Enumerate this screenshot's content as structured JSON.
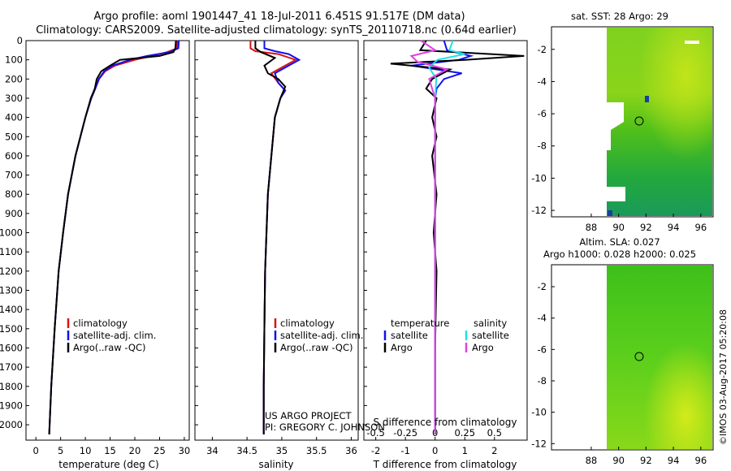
{
  "header": {
    "line1": "Argo profile: aoml 1901447_41 18-Jul-2011 6.451S 91.517E (DM data)",
    "line2": "Climatology: CARS2009. Satellite-adjusted climatology: synTS_20110718.nc (0.64d earlier)"
  },
  "colors": {
    "climatology": "#dd1111",
    "satellite": "#1010ee",
    "argo": "#000000",
    "sal_satellite": "#22e0e8",
    "sal_argo": "#e040e0"
  },
  "side_text": "©IMOS 03-Aug-2017 05:20:08",
  "credits": {
    "line1": "US ARGO PROJECT",
    "line2": "PI: GREGORY C. JOHNSON"
  },
  "chart_data": [
    {
      "type": "line",
      "id": "temperature",
      "xlabel": "temperature (deg C)",
      "ylabel": "",
      "xlim": [
        -2,
        31
      ],
      "ylim": [
        2080,
        0
      ],
      "xticks": [
        "0",
        "5",
        "10",
        "15",
        "20",
        "25",
        "30"
      ],
      "yticks": [
        "0",
        "100",
        "200",
        "300",
        "400",
        "500",
        "600",
        "700",
        "800",
        "900",
        "1000",
        "1100",
        "1200",
        "1300",
        "1400",
        "1500",
        "1600",
        "1700",
        "1800",
        "1900",
        "2000"
      ],
      "legend": [
        "climatology",
        "satellite-adj. clim.",
        "Argo(..raw -QC)"
      ],
      "series": [
        {
          "name": "climatology",
          "depth": [
            0,
            40,
            60,
            80,
            100,
            130,
            160,
            200,
            250,
            300,
            400,
            500,
            600,
            800,
            1000,
            1200,
            1500,
            1800,
            2050
          ],
          "values": [
            28.6,
            28.5,
            26.5,
            23.5,
            20,
            16,
            14,
            12.8,
            12.0,
            11.2,
            10.0,
            9.0,
            8.0,
            6.5,
            5.5,
            4.6,
            3.8,
            3.1,
            2.7
          ]
        },
        {
          "name": "satellite-adj. clim.",
          "depth": [
            0,
            40,
            60,
            80,
            100,
            130,
            160,
            200,
            250,
            300,
            400,
            500,
            600,
            800,
            1000,
            1200,
            1500,
            1800,
            2050
          ],
          "values": [
            28.9,
            28.8,
            27,
            22.5,
            19,
            15.5,
            13.8,
            12.7,
            12.0,
            11.2,
            10.0,
            9.0,
            8.0,
            6.5,
            5.5,
            4.6,
            3.8,
            3.1,
            2.7
          ]
        },
        {
          "name": "Argo(..raw -QC)",
          "depth": [
            0,
            40,
            60,
            80,
            100,
            130,
            160,
            200,
            250,
            300,
            400,
            500,
            600,
            800,
            1000,
            1200,
            1500,
            1800,
            2050
          ],
          "values": [
            28.3,
            28.2,
            27.8,
            25,
            17,
            15,
            13.2,
            12.3,
            11.9,
            11.1,
            10.0,
            9.0,
            8.0,
            6.5,
            5.5,
            4.6,
            3.8,
            3.1,
            2.7
          ]
        }
      ]
    },
    {
      "type": "line",
      "id": "salinity",
      "xlabel": "salinity",
      "xlim": [
        33.75,
        36.1
      ],
      "ylim": [
        2080,
        0
      ],
      "xticks": [
        "34",
        "34.5",
        "35",
        "35.5",
        "36"
      ],
      "legend": [
        "climatology",
        "satellite-adj. clim.",
        "Argo(..raw -QC)"
      ],
      "series": [
        {
          "name": "climatology",
          "depth": [
            0,
            40,
            55,
            70,
            100,
            130,
            170,
            220,
            260,
            300,
            400,
            600,
            800,
            1000,
            1200,
            1500,
            1800,
            2050
          ],
          "values": [
            34.55,
            34.55,
            34.62,
            34.95,
            35.2,
            35.05,
            34.85,
            34.95,
            35.05,
            34.98,
            34.9,
            34.85,
            34.8,
            34.78,
            34.76,
            34.75,
            34.74,
            34.74
          ]
        },
        {
          "name": "satellite-adj. clim.",
          "depth": [
            0,
            40,
            55,
            70,
            100,
            130,
            170,
            220,
            260,
            300,
            400,
            600,
            800,
            1000,
            1200,
            1500,
            1800,
            2050
          ],
          "values": [
            34.75,
            34.75,
            34.9,
            35.1,
            35.25,
            35.1,
            34.9,
            34.95,
            35.05,
            34.98,
            34.9,
            34.85,
            34.8,
            34.78,
            34.76,
            34.75,
            34.74,
            34.74
          ]
        },
        {
          "name": "Argo(..raw -QC)",
          "depth": [
            0,
            40,
            60,
            90,
            130,
            170,
            200,
            240,
            300,
            400,
            600,
            800,
            1000,
            1200,
            1500,
            1800,
            2050
          ],
          "values": [
            34.62,
            34.62,
            34.7,
            34.9,
            34.75,
            34.8,
            34.95,
            35.05,
            34.98,
            34.9,
            34.85,
            34.8,
            34.78,
            34.76,
            34.75,
            34.74,
            34.74
          ]
        }
      ]
    },
    {
      "type": "line",
      "id": "difference",
      "xlabel": "T difference from climatology",
      "top_label": "S difference from climatology",
      "xlim": [
        -2.4,
        3.1
      ],
      "ylim": [
        2080,
        0
      ],
      "xticks": [
        "-2",
        "-1",
        "0",
        "1",
        "2"
      ],
      "sticks": [
        "-0.5",
        "-0.25",
        "0",
        "0.25",
        "0.5"
      ],
      "legend_temperature": {
        "title": "temperature",
        "items": [
          "satellite",
          "Argo"
        ]
      },
      "legend_salinity": {
        "title": "salinity",
        "items": [
          "satellite",
          "Argo"
        ]
      },
      "series": [
        {
          "name": "T satellite",
          "depth": [
            0,
            50,
            80,
            100,
            130,
            170,
            200,
            250,
            300,
            400,
            600,
            800,
            1200,
            2050
          ],
          "values": [
            0.3,
            0.4,
            1.2,
            0.8,
            -0.8,
            0.9,
            0.3,
            0.05,
            0,
            0,
            0,
            0,
            0,
            0
          ]
        },
        {
          "name": "T Argo",
          "depth": [
            0,
            50,
            80,
            100,
            120,
            150,
            200,
            250,
            300,
            400,
            500,
            600,
            800,
            1000,
            1200,
            1600,
            2050
          ],
          "values": [
            -0.3,
            -0.5,
            3.0,
            1.0,
            -1.5,
            0.5,
            -0.1,
            -0.3,
            0.05,
            -0.1,
            0.05,
            -0.1,
            0.05,
            -0.05,
            0.05,
            0,
            0
          ]
        },
        {
          "name": "S satellite",
          "depth": [
            0,
            50,
            70,
            100,
            140,
            200,
            300,
            400,
            800,
            2050
          ],
          "values": [
            0.15,
            0.12,
            0.25,
            0.02,
            -0.05,
            0.01,
            0,
            0,
            0,
            0
          ]
        },
        {
          "name": "S Argo",
          "depth": [
            0,
            50,
            80,
            110,
            150,
            200,
            300,
            400,
            800,
            2050
          ],
          "values": [
            -0.12,
            0,
            -0.2,
            -0.15,
            0.1,
            -0.05,
            0,
            0,
            0,
            0
          ]
        }
      ]
    },
    {
      "type": "heatmap",
      "id": "sst",
      "title": "sat. SST: 28  Argo: 29",
      "xticks": [
        "88",
        "90",
        "92",
        "94",
        "96"
      ],
      "yticks": [
        "-2",
        "-4",
        "-6",
        "-8",
        "-10",
        "-12"
      ],
      "marker": [
        91.5,
        -6.45
      ]
    },
    {
      "type": "heatmap",
      "id": "sla",
      "title": "Altim. SLA: 0.027",
      "subtitle": "Argo h1000: 0.028 h2000: 0.025",
      "xticks": [
        "88",
        "90",
        "92",
        "94",
        "96"
      ],
      "yticks": [
        "-2",
        "-4",
        "-6",
        "-8",
        "-10",
        "-12"
      ],
      "marker": [
        91.5,
        -6.45
      ]
    }
  ]
}
